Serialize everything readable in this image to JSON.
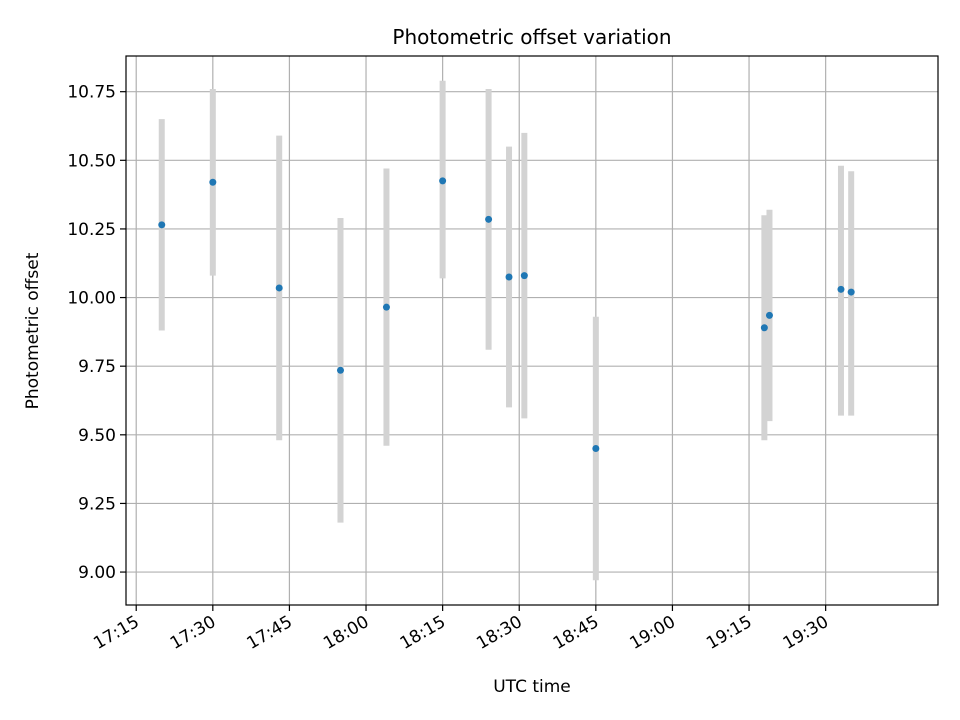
{
  "chart_data": {
    "type": "scatter",
    "title": "Photometric offset variation",
    "xlabel": "UTC time",
    "ylabel": "Photometric offset",
    "x_unit": "time (HH:MM, UTC)",
    "xlim": [
      "17:13",
      "19:52"
    ],
    "ylim": [
      8.88,
      10.88
    ],
    "x_ticks": [
      "17:15",
      "17:30",
      "17:45",
      "18:00",
      "18:15",
      "18:30",
      "18:45",
      "19:00",
      "19:15",
      "19:30"
    ],
    "y_ticks": [
      "9.00",
      "9.25",
      "9.50",
      "9.75",
      "10.00",
      "10.25",
      "10.50",
      "10.75"
    ],
    "grid": true,
    "point_color": "#1f77b4",
    "errorbar_color": "#d3d3d3",
    "points": [
      {
        "x": "17:20",
        "y": 10.265,
        "ymin": 9.88,
        "ymax": 10.65
      },
      {
        "x": "17:30",
        "y": 10.42,
        "ymin": 10.08,
        "ymax": 10.76
      },
      {
        "x": "17:43",
        "y": 10.035,
        "ymin": 9.48,
        "ymax": 10.59
      },
      {
        "x": "17:55",
        "y": 9.735,
        "ymin": 9.18,
        "ymax": 10.29
      },
      {
        "x": "18:04",
        "y": 9.965,
        "ymin": 9.46,
        "ymax": 10.47
      },
      {
        "x": "18:15",
        "y": 10.425,
        "ymin": 10.07,
        "ymax": 10.79
      },
      {
        "x": "18:24",
        "y": 10.285,
        "ymin": 9.81,
        "ymax": 10.76
      },
      {
        "x": "18:28",
        "y": 10.075,
        "ymin": 9.6,
        "ymax": 10.55
      },
      {
        "x": "18:31",
        "y": 10.08,
        "ymin": 9.56,
        "ymax": 10.6
      },
      {
        "x": "18:45",
        "y": 9.45,
        "ymin": 8.97,
        "ymax": 9.93
      },
      {
        "x": "19:18",
        "y": 9.89,
        "ymin": 9.48,
        "ymax": 10.3
      },
      {
        "x": "19:19",
        "y": 9.935,
        "ymin": 9.55,
        "ymax": 10.32
      },
      {
        "x": "19:33",
        "y": 10.03,
        "ymin": 9.57,
        "ymax": 10.48
      },
      {
        "x": "19:35",
        "y": 10.02,
        "ymin": 9.57,
        "ymax": 10.46
      }
    ]
  }
}
